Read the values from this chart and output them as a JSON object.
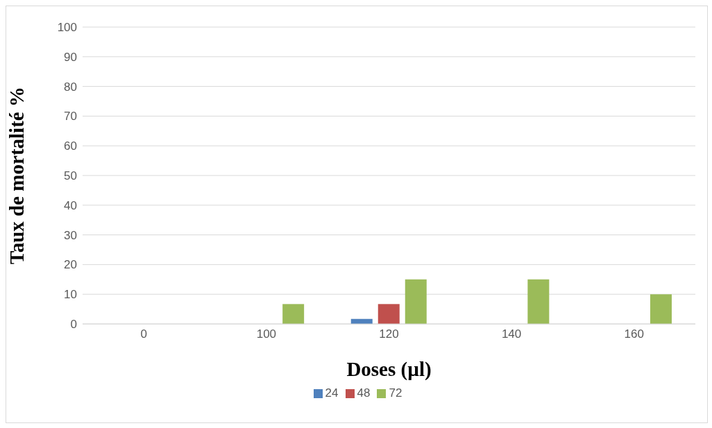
{
  "chart_data": {
    "type": "bar",
    "xlabel": "Doses (µl)",
    "ylabel": "Taux de mortalité %",
    "categories": [
      "0",
      "100",
      "120",
      "140",
      "160"
    ],
    "series": [
      {
        "name": "24",
        "color": "#4f81bd",
        "values": [
          0,
          0,
          1.7,
          0,
          0
        ]
      },
      {
        "name": "48",
        "color": "#c0504d",
        "values": [
          0,
          0,
          6.7,
          0,
          0
        ]
      },
      {
        "name": "72",
        "color": "#9bbb59",
        "values": [
          0,
          6.7,
          15,
          15,
          10
        ]
      }
    ],
    "ylim": [
      0,
      100
    ],
    "yticks": [
      0,
      10,
      20,
      30,
      40,
      50,
      60,
      70,
      80,
      90,
      100
    ],
    "grid": "y",
    "legend": "bottom"
  }
}
